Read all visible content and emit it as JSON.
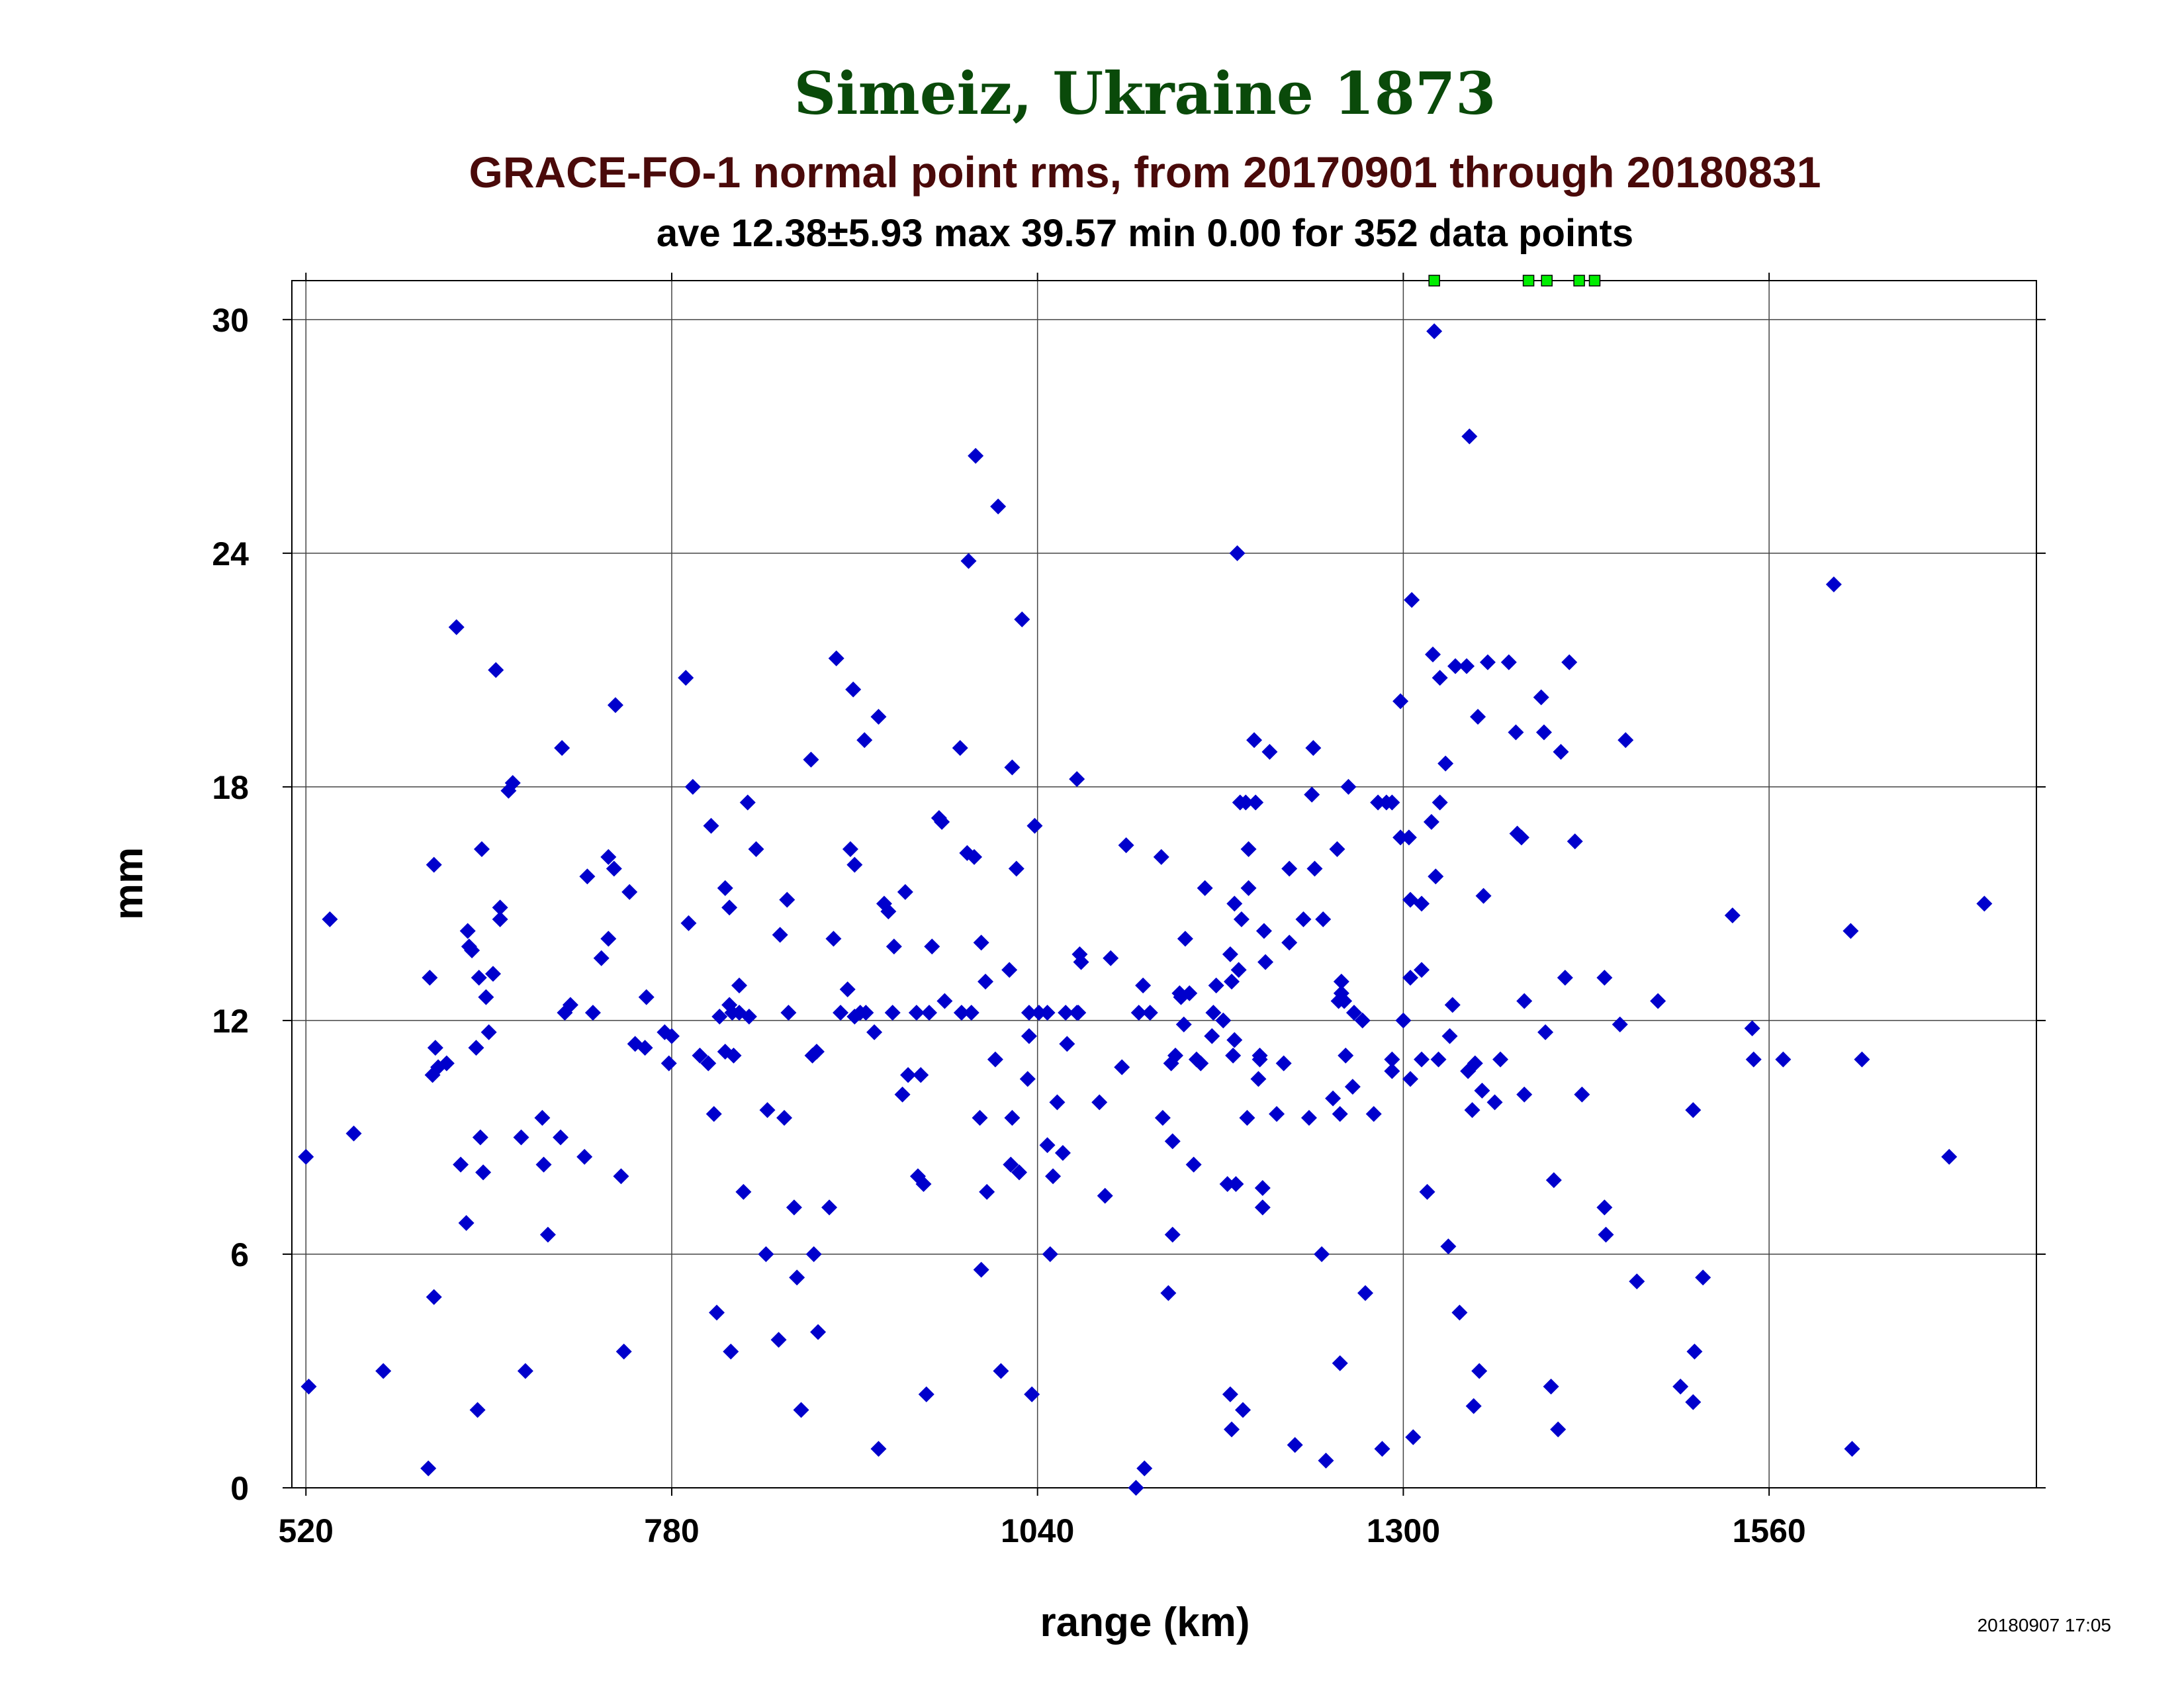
{
  "chart_data": {
    "type": "scatter",
    "title": "Simeiz, Ukraine 1873",
    "subtitle": "GRACE-FO-1 normal point rms, from 20170901 through 20180831",
    "stats": "ave 12.38±5.93 max 39.57 min 0.00 for 352 data points",
    "xlabel": "range (km)",
    "ylabel": "mm",
    "timestamp": "20180907 17:05",
    "xlim": [
      510,
      1750
    ],
    "ylim": [
      0,
      31
    ],
    "xticks": [
      520,
      780,
      1040,
      1300,
      1560
    ],
    "yticks": [
      0,
      6,
      12,
      18,
      24,
      30
    ],
    "grid": true,
    "colors": {
      "title": "#0a4a0a",
      "subtitle": "#4a0a0a",
      "points": "#0000cc",
      "overflow": "#00ee00"
    },
    "overflow_x": [
      1322,
      1389,
      1402,
      1425,
      1436
    ],
    "points": [
      [
        520,
        8.5
      ],
      [
        522,
        2.6
      ],
      [
        537,
        14.6
      ],
      [
        554,
        9.1
      ],
      [
        575,
        3.0
      ],
      [
        607,
        0.5
      ],
      [
        608,
        13.1
      ],
      [
        610,
        10.6
      ],
      [
        611,
        16.0
      ],
      [
        611,
        4.9
      ],
      [
        612,
        11.3
      ],
      [
        614,
        10.8
      ],
      [
        620,
        10.9
      ],
      [
        627,
        22.1
      ],
      [
        630,
        8.3
      ],
      [
        634,
        6.8
      ],
      [
        635,
        14.3
      ],
      [
        636,
        13.9
      ],
      [
        638,
        13.8
      ],
      [
        641,
        11.3
      ],
      [
        642,
        2.0
      ],
      [
        643,
        13.1
      ],
      [
        644,
        9.0
      ],
      [
        645,
        16.4
      ],
      [
        646,
        8.1
      ],
      [
        648,
        12.6
      ],
      [
        650,
        11.7
      ],
      [
        653,
        13.2
      ],
      [
        655,
        21.0
      ],
      [
        658,
        14.6
      ],
      [
        658,
        14.9
      ],
      [
        664,
        17.9
      ],
      [
        667,
        18.1
      ],
      [
        673,
        9.0
      ],
      [
        676,
        3.0
      ],
      [
        688,
        9.5
      ],
      [
        689,
        8.3
      ],
      [
        692,
        6.5
      ],
      [
        701,
        9.0
      ],
      [
        702,
        19.0
      ],
      [
        704,
        12.2
      ],
      [
        708,
        12.4
      ],
      [
        718,
        8.5
      ],
      [
        720,
        15.7
      ],
      [
        724,
        12.2
      ],
      [
        730,
        13.6
      ],
      [
        735,
        16.2
      ],
      [
        735,
        14.1
      ],
      [
        739,
        15.9
      ],
      [
        740,
        20.1
      ],
      [
        744,
        8.0
      ],
      [
        746,
        3.5
      ],
      [
        750,
        15.3
      ],
      [
        754,
        11.4
      ],
      [
        761,
        11.3
      ],
      [
        762,
        12.6
      ],
      [
        775,
        11.7
      ],
      [
        778,
        10.9
      ],
      [
        780,
        11.6
      ],
      [
        790,
        20.8
      ],
      [
        792,
        14.5
      ],
      [
        795,
        18.0
      ],
      [
        800,
        11.1
      ],
      [
        806,
        10.9
      ],
      [
        808,
        17.0
      ],
      [
        810,
        9.6
      ],
      [
        812,
        4.5
      ],
      [
        814,
        12.1
      ],
      [
        818,
        15.4
      ],
      [
        818,
        11.2
      ],
      [
        821,
        14.9
      ],
      [
        821,
        12.4
      ],
      [
        822,
        3.5
      ],
      [
        823,
        12.2
      ],
      [
        824,
        11.1
      ],
      [
        828,
        12.9
      ],
      [
        828,
        12.2
      ],
      [
        831,
        7.6
      ],
      [
        834,
        17.6
      ],
      [
        835,
        12.1
      ],
      [
        840,
        16.4
      ],
      [
        847,
        6.0
      ],
      [
        848,
        9.7
      ],
      [
        856,
        3.8
      ],
      [
        857,
        14.2
      ],
      [
        860,
        9.5
      ],
      [
        862,
        15.1
      ],
      [
        863,
        12.2
      ],
      [
        867,
        7.2
      ],
      [
        869,
        5.4
      ],
      [
        872,
        2.0
      ],
      [
        879,
        18.7
      ],
      [
        880,
        11.1
      ],
      [
        881,
        6.0
      ],
      [
        883,
        11.2
      ],
      [
        884,
        4.0
      ],
      [
        892,
        7.2
      ],
      [
        895,
        14.1
      ],
      [
        897,
        21.3
      ],
      [
        900,
        12.2
      ],
      [
        905,
        12.8
      ],
      [
        907,
        16.4
      ],
      [
        909,
        20.5
      ],
      [
        910,
        12.1
      ],
      [
        910,
        16.0
      ],
      [
        914,
        12.2
      ],
      [
        917,
        19.2
      ],
      [
        918,
        12.2
      ],
      [
        924,
        11.7
      ],
      [
        927,
        19.8
      ],
      [
        927,
        1.0
      ],
      [
        931,
        15.0
      ],
      [
        934,
        14.8
      ],
      [
        937,
        12.2
      ],
      [
        938,
        13.9
      ],
      [
        944,
        10.1
      ],
      [
        946,
        15.3
      ],
      [
        948,
        10.6
      ],
      [
        954,
        12.2
      ],
      [
        955,
        8.0
      ],
      [
        957,
        10.6
      ],
      [
        959,
        7.8
      ],
      [
        961,
        2.4
      ],
      [
        963,
        12.2
      ],
      [
        965,
        13.9
      ],
      [
        970,
        17.2
      ],
      [
        972,
        17.1
      ],
      [
        974,
        12.5
      ],
      [
        985,
        19.0
      ],
      [
        986,
        12.2
      ],
      [
        990,
        16.3
      ],
      [
        991,
        23.8
      ],
      [
        993,
        12.2
      ],
      [
        995,
        16.2
      ],
      [
        996,
        26.5
      ],
      [
        999,
        9.5
      ],
      [
        1000,
        14.0
      ],
      [
        1000,
        5.6
      ],
      [
        1003,
        13.0
      ],
      [
        1004,
        7.6
      ],
      [
        1010,
        11.0
      ],
      [
        1012,
        25.2
      ],
      [
        1014,
        3.0
      ],
      [
        1020,
        13.3
      ],
      [
        1021,
        8.3
      ],
      [
        1022,
        9.5
      ],
      [
        1022,
        18.5
      ],
      [
        1025,
        15.9
      ],
      [
        1027,
        8.1
      ],
      [
        1029,
        22.3
      ],
      [
        1033,
        10.5
      ],
      [
        1034,
        12.2
      ],
      [
        1034,
        11.6
      ],
      [
        1036,
        2.4
      ],
      [
        1038,
        17.0
      ],
      [
        1041,
        12.2
      ],
      [
        1047,
        8.8
      ],
      [
        1047,
        12.2
      ],
      [
        1049,
        6.0
      ],
      [
        1051,
        8.0
      ],
      [
        1054,
        9.9
      ],
      [
        1058,
        8.6
      ],
      [
        1060,
        12.2
      ],
      [
        1061,
        11.4
      ],
      [
        1068,
        12.2
      ],
      [
        1068,
        18.2
      ],
      [
        1069,
        12.2
      ],
      [
        1070,
        13.7
      ],
      [
        1071,
        13.5
      ],
      [
        1084,
        9.9
      ],
      [
        1088,
        7.5
      ],
      [
        1092,
        13.6
      ],
      [
        1100,
        10.8
      ],
      [
        1103,
        16.5
      ],
      [
        1110,
        0.0
      ],
      [
        1112,
        12.2
      ],
      [
        1115,
        12.9
      ],
      [
        1116,
        0.5
      ],
      [
        1120,
        12.2
      ],
      [
        1128,
        16.2
      ],
      [
        1129,
        9.5
      ],
      [
        1133,
        5.0
      ],
      [
        1135,
        10.9
      ],
      [
        1136,
        6.5
      ],
      [
        1136,
        8.9
      ],
      [
        1138,
        11.1
      ],
      [
        1141,
        12.7
      ],
      [
        1142,
        12.6
      ],
      [
        1144,
        11.9
      ],
      [
        1145,
        14.1
      ],
      [
        1148,
        12.7
      ],
      [
        1151,
        8.3
      ],
      [
        1153,
        11.0
      ],
      [
        1156,
        10.9
      ],
      [
        1159,
        15.4
      ],
      [
        1164,
        11.6
      ],
      [
        1165,
        12.2
      ],
      [
        1167,
        12.9
      ],
      [
        1172,
        12.0
      ],
      [
        1175,
        7.8
      ],
      [
        1177,
        2.4
      ],
      [
        1177,
        13.7
      ],
      [
        1178,
        1.5
      ],
      [
        1178,
        13.0
      ],
      [
        1179,
        11.1
      ],
      [
        1180,
        11.5
      ],
      [
        1180,
        15.0
      ],
      [
        1181,
        7.8
      ],
      [
        1182,
        24.0
      ],
      [
        1183,
        13.3
      ],
      [
        1184,
        17.6
      ],
      [
        1185,
        14.6
      ],
      [
        1186,
        2.0
      ],
      [
        1188,
        17.6
      ],
      [
        1189,
        9.5
      ],
      [
        1190,
        15.4
      ],
      [
        1190,
        16.4
      ],
      [
        1194,
        19.2
      ],
      [
        1195,
        17.6
      ],
      [
        1197,
        10.5
      ],
      [
        1198,
        11.0
      ],
      [
        1198,
        11.1
      ],
      [
        1200,
        7.2
      ],
      [
        1200,
        7.7
      ],
      [
        1201,
        14.3
      ],
      [
        1202,
        13.5
      ],
      [
        1205,
        18.9
      ],
      [
        1210,
        9.6
      ],
      [
        1215,
        10.9
      ],
      [
        1219,
        15.9
      ],
      [
        1219,
        14.0
      ],
      [
        1223,
        1.1
      ],
      [
        1229,
        14.6
      ],
      [
        1233,
        9.5
      ],
      [
        1235,
        17.8
      ],
      [
        1236,
        19.0
      ],
      [
        1237,
        15.9
      ],
      [
        1242,
        6.0
      ],
      [
        1243,
        14.6
      ],
      [
        1245,
        0.7
      ],
      [
        1250,
        10.0
      ],
      [
        1253,
        16.4
      ],
      [
        1254,
        12.5
      ],
      [
        1255,
        9.6
      ],
      [
        1255,
        3.2
      ],
      [
        1256,
        12.7
      ],
      [
        1256,
        13.0
      ],
      [
        1258,
        12.5
      ],
      [
        1259,
        11.1
      ],
      [
        1261,
        18.0
      ],
      [
        1264,
        10.3
      ],
      [
        1265,
        12.2
      ],
      [
        1271,
        12.0
      ],
      [
        1273,
        5.0
      ],
      [
        1279,
        9.6
      ],
      [
        1282,
        17.6
      ],
      [
        1285,
        1.0
      ],
      [
        1288,
        17.6
      ],
      [
        1292,
        11.0
      ],
      [
        1292,
        10.7
      ],
      [
        1292,
        17.6
      ],
      [
        1298,
        16.7
      ],
      [
        1298,
        20.2
      ],
      [
        1300,
        12.0
      ],
      [
        1304,
        16.7
      ],
      [
        1305,
        15.1
      ],
      [
        1305,
        10.5
      ],
      [
        1305,
        13.1
      ],
      [
        1306,
        22.8
      ],
      [
        1307,
        1.3
      ],
      [
        1313,
        13.3
      ],
      [
        1313,
        15.0
      ],
      [
        1313,
        11.0
      ],
      [
        1317,
        7.6
      ],
      [
        1320,
        17.1
      ],
      [
        1321,
        21.4
      ],
      [
        1322,
        29.7
      ],
      [
        1323,
        15.7
      ],
      [
        1325,
        11.0
      ],
      [
        1326,
        17.6
      ],
      [
        1326,
        20.8
      ],
      [
        1330,
        18.6
      ],
      [
        1332,
        6.2
      ],
      [
        1333,
        11.6
      ],
      [
        1335,
        12.4
      ],
      [
        1337,
        21.1
      ],
      [
        1340,
        4.5
      ],
      [
        1345,
        21.1
      ],
      [
        1346,
        10.7
      ],
      [
        1347,
        27.0
      ],
      [
        1349,
        9.7
      ],
      [
        1350,
        2.1
      ],
      [
        1351,
        10.9
      ],
      [
        1353,
        19.8
      ],
      [
        1354,
        3.0
      ],
      [
        1356,
        10.2
      ],
      [
        1357,
        15.2
      ],
      [
        1360,
        21.2
      ],
      [
        1365,
        9.9
      ],
      [
        1369,
        11.0
      ],
      [
        1375,
        21.2
      ],
      [
        1380,
        19.4
      ],
      [
        1381,
        16.8
      ],
      [
        1384,
        16.7
      ],
      [
        1386,
        10.1
      ],
      [
        1386,
        12.5
      ],
      [
        1398,
        20.3
      ],
      [
        1400,
        19.4
      ],
      [
        1401,
        11.7
      ],
      [
        1405,
        2.6
      ],
      [
        1407,
        7.9
      ],
      [
        1410,
        1.5
      ],
      [
        1412,
        18.9
      ],
      [
        1415,
        13.1
      ],
      [
        1418,
        21.2
      ],
      [
        1422,
        16.6
      ],
      [
        1427,
        10.1
      ],
      [
        1443,
        13.1
      ],
      [
        1443,
        7.2
      ],
      [
        1444,
        6.5
      ],
      [
        1454,
        11.9
      ],
      [
        1458,
        19.2
      ],
      [
        1466,
        5.3
      ],
      [
        1481,
        12.5
      ],
      [
        1497,
        2.6
      ],
      [
        1506,
        9.7
      ],
      [
        1506,
        2.2
      ],
      [
        1507,
        3.5
      ],
      [
        1513,
        5.4
      ],
      [
        1534,
        14.7
      ],
      [
        1548,
        11.8
      ],
      [
        1549,
        11.0
      ],
      [
        1570,
        11.0
      ],
      [
        1606,
        23.2
      ],
      [
        1618,
        14.3
      ],
      [
        1619,
        1.0
      ],
      [
        1626,
        11.0
      ],
      [
        1688,
        8.5
      ],
      [
        1713,
        15.0
      ]
    ]
  }
}
